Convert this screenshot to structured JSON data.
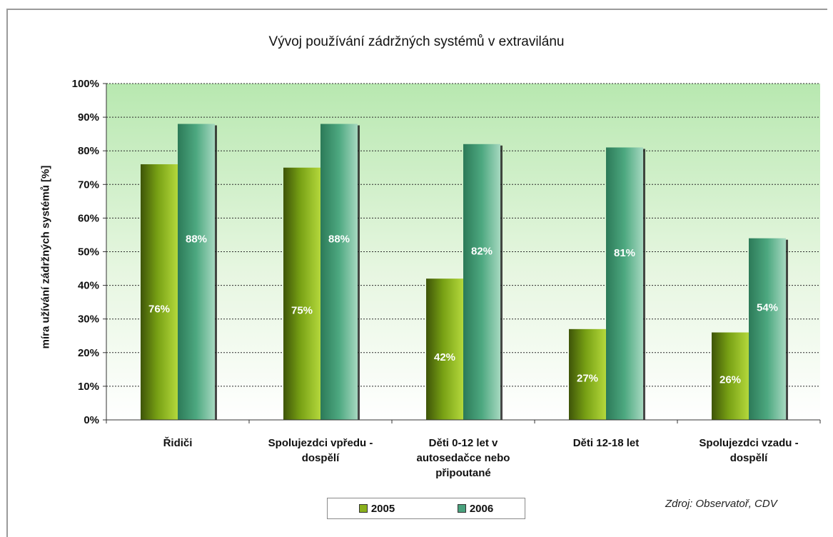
{
  "chart_data": {
    "type": "bar",
    "title": "Vývoj používání zádržných systémů v extravilánu",
    "ylabel": "míra užívání zádržných systémů [%]",
    "xlabel": "",
    "ylim": [
      0,
      100
    ],
    "yticks": [
      "0%",
      "10%",
      "20%",
      "30%",
      "40%",
      "50%",
      "60%",
      "70%",
      "80%",
      "90%",
      "100%"
    ],
    "categories": [
      "Řidiči",
      "Spolujezdci vpředu -\ndospělí",
      "Děti 0-12 let v\nautosedačce nebo\npřipoutané",
      "Děti 12-18 let",
      "Spolujezdci vzadu -\ndospělí"
    ],
    "series": [
      {
        "name": "2005",
        "values": [
          76,
          75,
          42,
          27,
          26
        ],
        "labels": [
          "76%",
          "75%",
          "42%",
          "27%",
          "26%"
        ],
        "color": "#8ab01c"
      },
      {
        "name": "2006",
        "values": [
          88,
          88,
          82,
          81,
          54
        ],
        "labels": [
          "88%",
          "88%",
          "82%",
          "81%",
          "54%"
        ],
        "color": "#4aa27e"
      }
    ],
    "grid": true,
    "legend": "bottom",
    "source": "Zdroj: Observatoř, CDV"
  }
}
